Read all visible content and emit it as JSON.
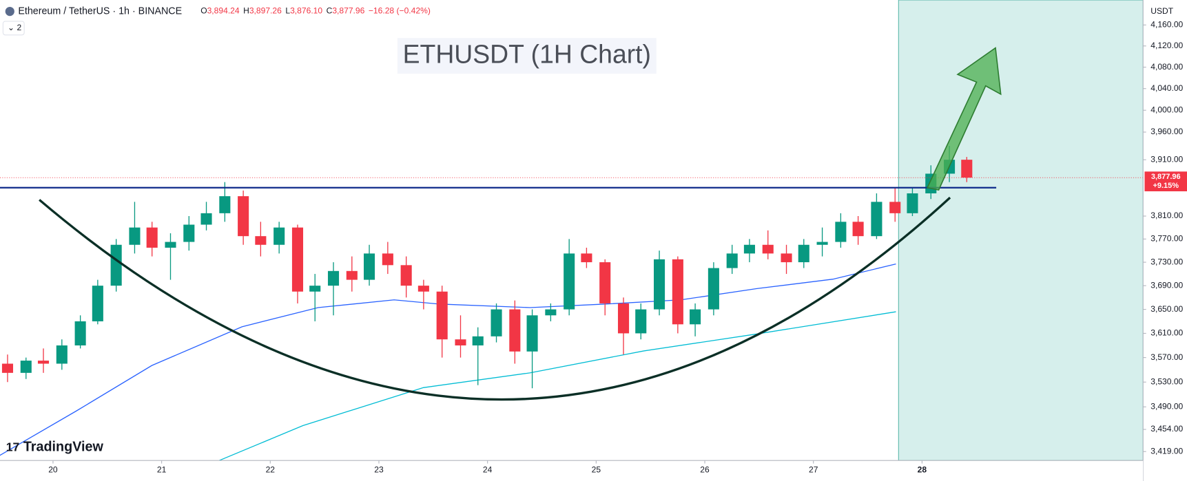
{
  "header": {
    "symbol": "Ethereum / TetherUS · 1h · BINANCE",
    "ohlc": [
      {
        "label": "O",
        "value": "3,894.24"
      },
      {
        "label": "H",
        "value": "3,897.26"
      },
      {
        "label": "L",
        "value": "3,876.10"
      },
      {
        "label": "C",
        "value": "3,877.96"
      }
    ],
    "change": "−16.28 (−0.42%)",
    "indicators": "2"
  },
  "watermark": "TradingView",
  "chart_data": {
    "type": "candlestick",
    "title": "ETHUSDT (1H Chart)",
    "y_axis_unit": "USDT",
    "log_scale": true,
    "xlim": [
      19.512,
      30.035
    ],
    "xticks": [
      20,
      21,
      22,
      23,
      24,
      25,
      26,
      27,
      28
    ],
    "ylim": [
      3405,
      4208
    ],
    "yticks": [
      {
        "value": 4160,
        "label": "4,160.00"
      },
      {
        "value": 4120,
        "label": "4,120.00"
      },
      {
        "value": 4080,
        "label": "4,080.00"
      },
      {
        "value": 4040,
        "label": "4,040.00"
      },
      {
        "value": 4000,
        "label": "4,000.00"
      },
      {
        "value": 3960,
        "label": "3,960.00"
      },
      {
        "value": 3910,
        "label": "3,910.00"
      },
      {
        "value": 3810,
        "label": "3,810.00"
      },
      {
        "value": 3770,
        "label": "3,770.00"
      },
      {
        "value": 3730,
        "label": "3,730.00"
      },
      {
        "value": 3690,
        "label": "3,690.00"
      },
      {
        "value": 3650,
        "label": "3,650.00"
      },
      {
        "value": 3610,
        "label": "3,610.00"
      },
      {
        "value": 3570,
        "label": "3,570.00"
      },
      {
        "value": 3530,
        "label": "3,530.00"
      },
      {
        "value": 3490,
        "label": "3,490.00"
      },
      {
        "value": 3454,
        "label": "3,454.00"
      },
      {
        "value": 3419,
        "label": "3,419.00"
      }
    ],
    "last_price": {
      "value": 3877.96,
      "label": "3,877.96",
      "change": "+9.15%"
    },
    "up_color": "#089981",
    "down_color": "#f23645",
    "x": [
      19.5,
      19.67,
      19.83,
      20,
      20.17,
      20.33,
      20.5,
      20.67,
      20.83,
      21,
      21.17,
      21.33,
      21.5,
      21.67,
      21.83,
      22,
      22.17,
      22.33,
      22.5,
      22.67,
      22.83,
      23,
      23.17,
      23.33,
      23.5,
      23.67,
      23.83,
      24,
      24.17,
      24.33,
      24.5,
      24.67,
      24.83,
      25,
      25.17,
      25.33,
      25.5,
      25.67,
      25.83,
      26,
      26.17,
      26.33,
      26.5,
      26.67,
      26.83,
      27,
      27.17,
      27.33,
      27.5,
      27.67,
      27.83,
      28,
      28.17,
      28.33
    ],
    "open": [
      3560,
      3545,
      3565,
      3560,
      3590,
      3630,
      3690,
      3760,
      3790,
      3755,
      3765,
      3795,
      3815,
      3845,
      3775,
      3760,
      3790,
      3680,
      3690,
      3715,
      3700,
      3745,
      3725,
      3690,
      3680,
      3600,
      3590,
      3605,
      3650,
      3580,
      3640,
      3650,
      3745,
      3730,
      3660,
      3610,
      3650,
      3735,
      3625,
      3650,
      3720,
      3745,
      3760,
      3745,
      3730,
      3760,
      3765,
      3800,
      3775,
      3835,
      3815,
      3850,
      3885,
      3910
    ],
    "high": [
      3575,
      3570,
      3585,
      3600,
      3640,
      3700,
      3770,
      3835,
      3800,
      3780,
      3810,
      3835,
      3870,
      3855,
      3800,
      3800,
      3795,
      3710,
      3730,
      3740,
      3760,
      3765,
      3740,
      3700,
      3690,
      3640,
      3620,
      3660,
      3665,
      3650,
      3660,
      3770,
      3755,
      3735,
      3670,
      3660,
      3750,
      3740,
      3660,
      3730,
      3760,
      3770,
      3785,
      3760,
      3770,
      3790,
      3815,
      3810,
      3850,
      3860,
      3860,
      3900,
      3935,
      3915
    ],
    "low": [
      3530,
      3535,
      3545,
      3550,
      3585,
      3625,
      3680,
      3745,
      3740,
      3700,
      3750,
      3785,
      3800,
      3760,
      3740,
      3745,
      3660,
      3630,
      3640,
      3680,
      3690,
      3710,
      3670,
      3650,
      3570,
      3570,
      3525,
      3595,
      3560,
      3520,
      3630,
      3640,
      3720,
      3640,
      3575,
      3600,
      3640,
      3610,
      3605,
      3640,
      3710,
      3730,
      3735,
      3710,
      3720,
      3740,
      3755,
      3760,
      3770,
      3800,
      3810,
      3840,
      3870,
      3870
    ],
    "close": [
      3545,
      3565,
      3560,
      3590,
      3630,
      3690,
      3760,
      3790,
      3755,
      3765,
      3795,
      3815,
      3845,
      3775,
      3760,
      3790,
      3680,
      3690,
      3715,
      3700,
      3745,
      3725,
      3690,
      3680,
      3600,
      3590,
      3605,
      3650,
      3580,
      3640,
      3650,
      3745,
      3730,
      3660,
      3610,
      3650,
      3735,
      3625,
      3650,
      3720,
      3745,
      3760,
      3745,
      3730,
      3760,
      3765,
      3800,
      3775,
      3835,
      3815,
      3850,
      3885,
      3910,
      3878
    ],
    "series": [
      {
        "color": "#2962ff",
        "x": [
          19.51,
          20.21,
          20.91,
          21.74,
          22.44,
          23.14,
          23.55,
          24.39,
          25.09,
          25.78,
          26.48,
          27.18,
          27.76
        ],
        "values": [
          3413,
          3483,
          3557,
          3621,
          3653,
          3666,
          3659,
          3653,
          3659,
          3666,
          3685,
          3701,
          3727
        ]
      },
      {
        "color": "#00bcd4",
        "x": [
          21.53,
          22.3,
          23.41,
          24.39,
          25.44,
          26.48,
          27.76
        ],
        "values": [
          3405,
          3460,
          3521,
          3545,
          3581,
          3609,
          3646
        ]
      }
    ]
  }
}
